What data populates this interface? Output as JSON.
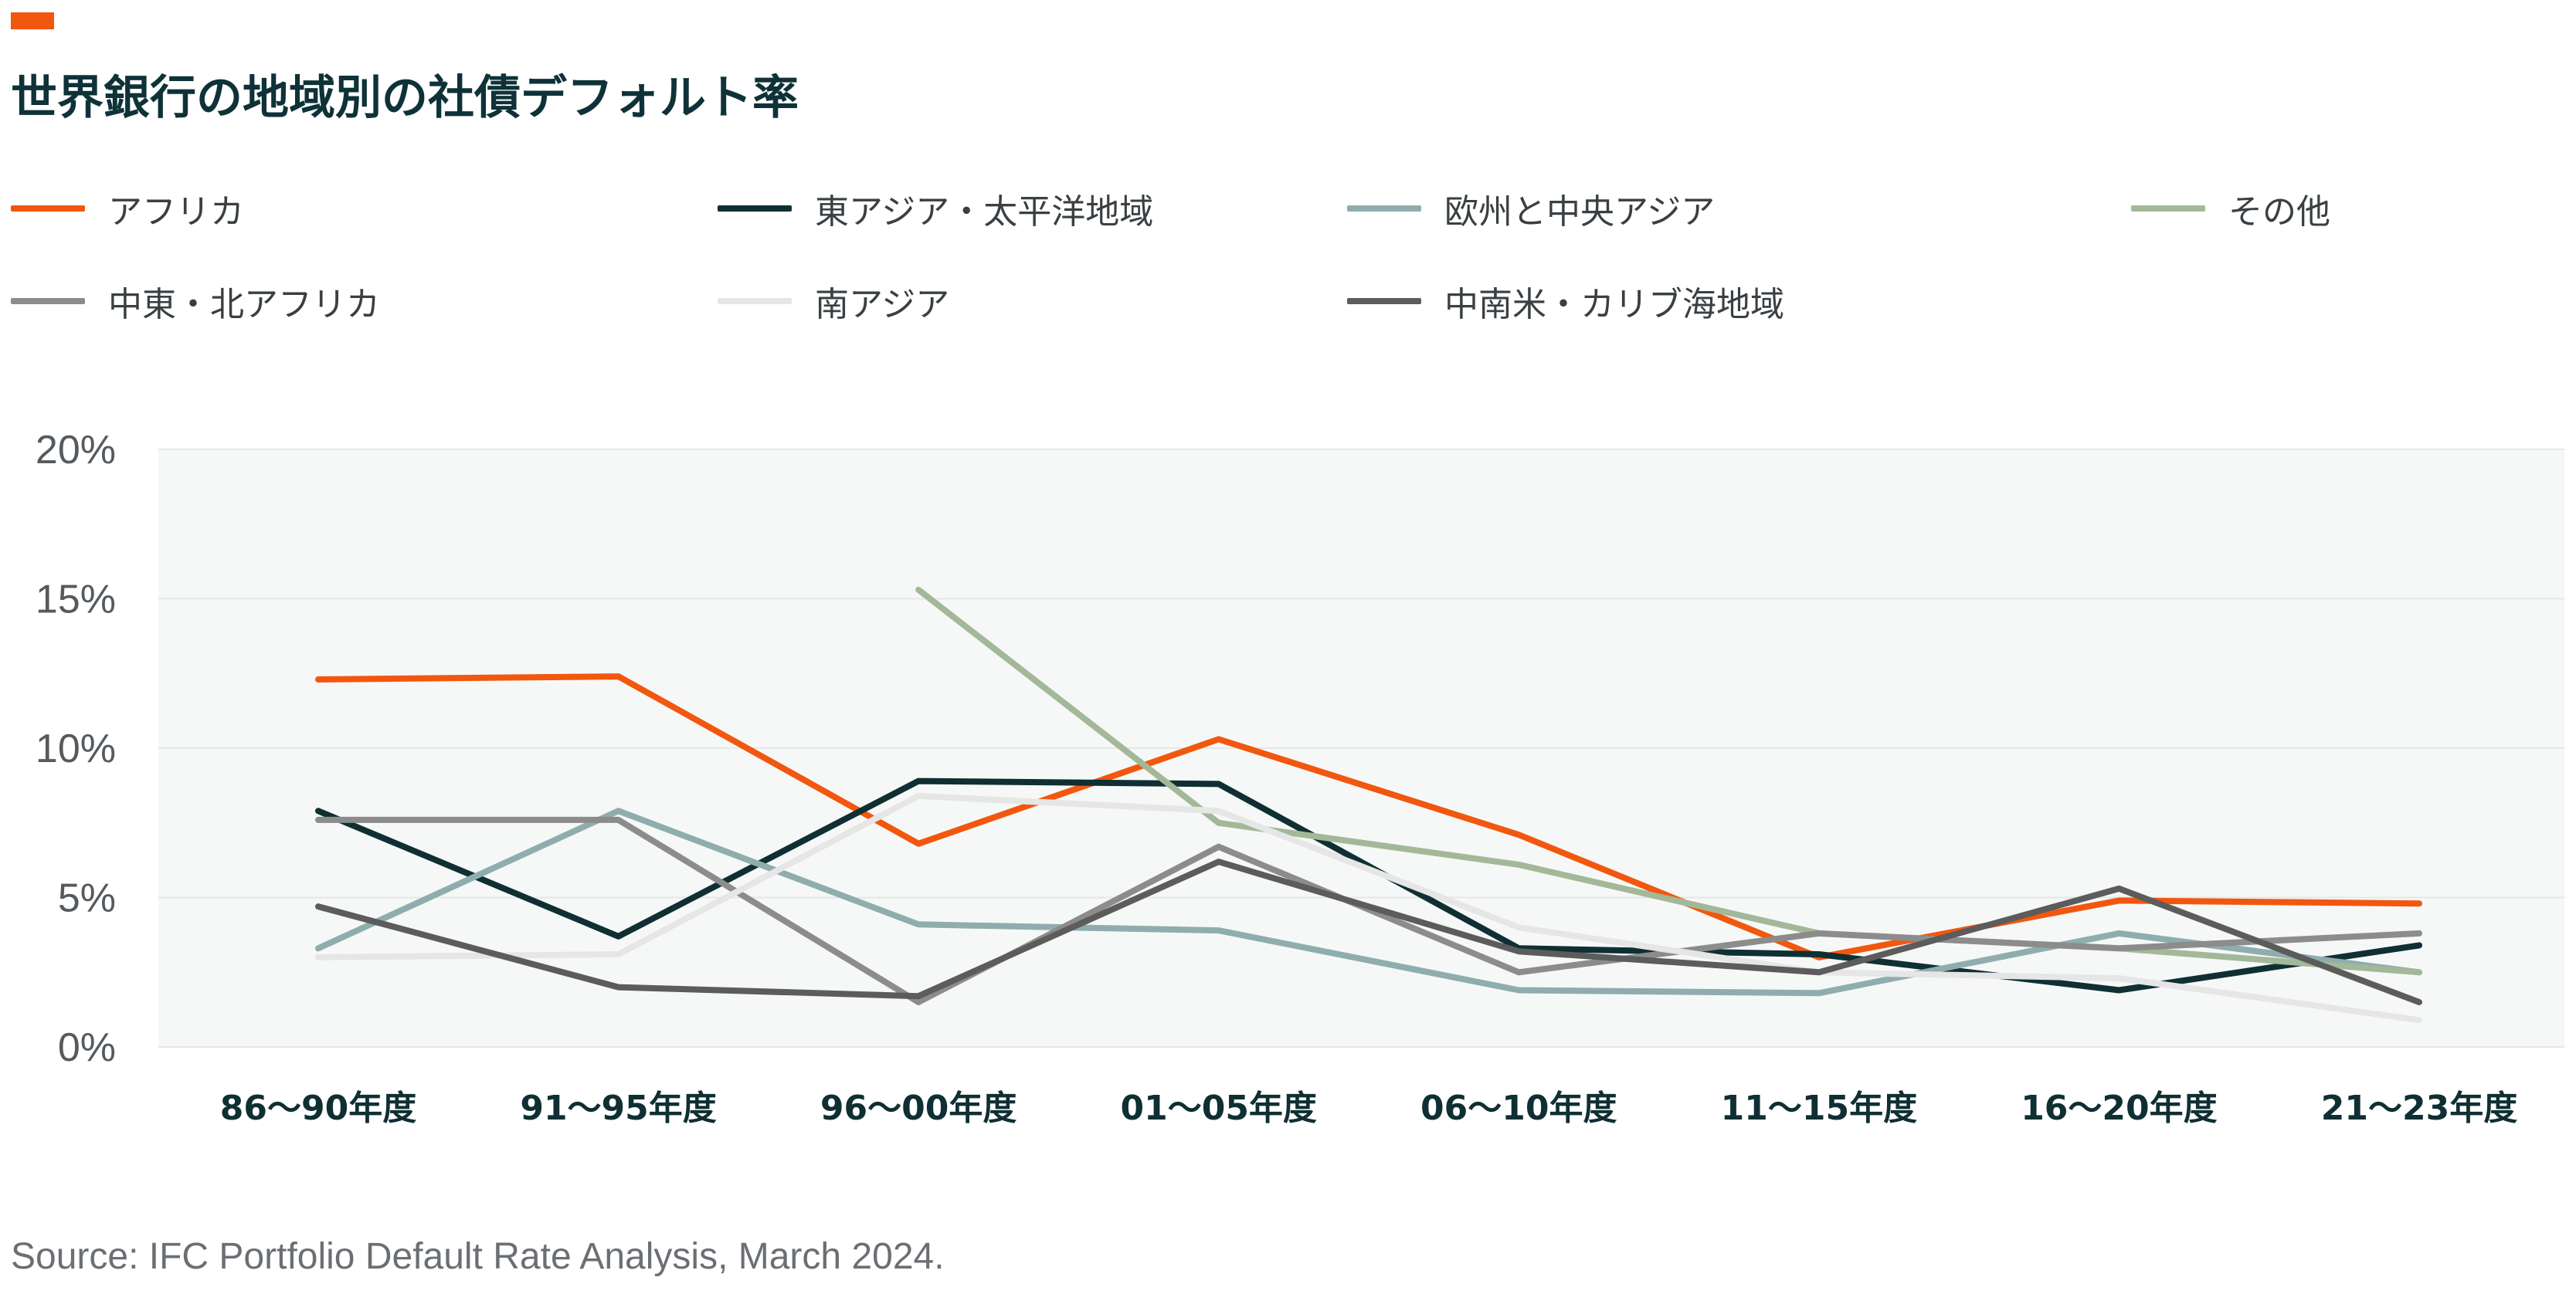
{
  "title": "世界銀行の地域別の社債デフォルト率",
  "source": "Source: IFC Portfolio Default Rate Analysis, March 2024.",
  "colors": {
    "accent": "#f2570f",
    "plot_bg": "#f6f8f7",
    "grid": "#e4e8e7"
  },
  "chart_data": {
    "type": "line",
    "title": "世界銀行の地域別の社債デフォルト率",
    "xlabel": "",
    "ylabel": "",
    "categories": [
      "86～90年度",
      "91～95年度",
      "96～00年度",
      "01～05年度",
      "06～10年度",
      "11～15年度",
      "16～20年度",
      "21～23年度"
    ],
    "ylim": [
      0,
      20
    ],
    "yticks": [
      "0%",
      "5%",
      "10%",
      "15%",
      "20%"
    ],
    "grid": true,
    "legend_position": "top",
    "series": [
      {
        "name": "アフリカ",
        "color": "#f2570f",
        "values": [
          12.3,
          12.4,
          6.8,
          10.3,
          7.1,
          3.0,
          4.9,
          4.8
        ]
      },
      {
        "name": "東アジア・太平洋地域",
        "color": "#0f2f33",
        "values": [
          7.9,
          3.7,
          8.9,
          8.8,
          3.3,
          3.1,
          1.9,
          3.4
        ]
      },
      {
        "name": "欧州と中央アジア",
        "color": "#8fadae",
        "values": [
          3.3,
          7.9,
          4.1,
          3.9,
          1.9,
          1.8,
          3.8,
          2.5
        ]
      },
      {
        "name": "その他",
        "color": "#a3b898",
        "values": [
          null,
          null,
          15.3,
          7.5,
          6.1,
          3.8,
          3.3,
          2.5
        ]
      },
      {
        "name": "中東・北アフリカ",
        "color": "#8c8c8c",
        "values": [
          7.6,
          7.6,
          1.5,
          6.7,
          2.5,
          3.8,
          3.3,
          3.8
        ]
      },
      {
        "name": "南アジア",
        "color": "#e6e6e6",
        "values": [
          3.0,
          3.1,
          8.4,
          7.9,
          4.0,
          2.5,
          2.3,
          0.9
        ]
      },
      {
        "name": "中南米・カリブ海地域",
        "color": "#5c5c5c",
        "values": [
          4.7,
          2.0,
          1.7,
          6.2,
          3.2,
          2.5,
          5.3,
          1.5
        ]
      }
    ]
  }
}
